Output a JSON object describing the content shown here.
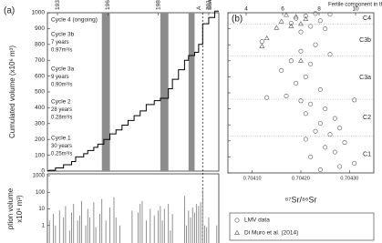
{
  "chart_data": [
    {
      "type": "line",
      "panel": "(a)",
      "ylabel": "Cumulated volume (x10⁶ m³)",
      "xlim": [
        1930,
        2015
      ],
      "xticks": [
        1935,
        1960,
        1985,
        2010
      ],
      "ylim": [
        0,
        1000
      ],
      "yticks": [
        0,
        100,
        200,
        300,
        400,
        500,
        600,
        700,
        800,
        900,
        1000
      ],
      "color": "#000000",
      "band_color": "#8c8c8c",
      "bands": [
        [
          1957,
          1961
        ],
        [
          1986,
          1990
        ],
        [
          2000,
          2003
        ]
      ],
      "dashed_x": 2007,
      "markers": [
        "A",
        "Sum"
      ],
      "x": [
        1930,
        1931,
        1934,
        1934,
        1938,
        1938,
        1942,
        1942,
        1944,
        1944,
        1948,
        1948,
        1950,
        1950,
        1953,
        1953,
        1955,
        1955,
        1958,
        1958,
        1961,
        1961,
        1964,
        1964,
        1967,
        1967,
        1970,
        1970,
        1973,
        1973,
        1976,
        1976,
        1979,
        1979,
        1983,
        1983,
        1986,
        1986,
        1990,
        1990,
        1992,
        1992,
        1995,
        1995,
        1998,
        1998,
        2000,
        2000,
        2003,
        2003,
        2005,
        2005,
        2007,
        2007,
        2010,
        2010,
        2013,
        2013,
        2015
      ],
      "values": [
        0,
        5,
        5,
        20,
        20,
        40,
        40,
        60,
        60,
        90,
        90,
        110,
        110,
        130,
        130,
        150,
        150,
        170,
        170,
        200,
        200,
        235,
        235,
        260,
        260,
        290,
        290,
        320,
        320,
        350,
        350,
        380,
        380,
        420,
        420,
        445,
        445,
        460,
        460,
        520,
        520,
        580,
        580,
        640,
        640,
        700,
        700,
        730,
        730,
        750,
        750,
        800,
        800,
        930,
        930,
        970,
        970,
        1010,
        1010
      ],
      "annotations": [
        {
          "lines": [
            "Cycle 4 (ongoing)"
          ]
        },
        {
          "lines": [
            "Cycle 3b",
            "7 years",
            "0.97m³/s"
          ]
        },
        {
          "lines": [
            "Cycle 3a",
            "9 years",
            "0.90m³/s"
          ]
        },
        {
          "lines": [
            "Cycle 2",
            "28 years",
            "0.28m³/s"
          ]
        },
        {
          "lines": [
            "Cycle 1",
            "30 years",
            "0.25m³/s"
          ]
        }
      ]
    },
    {
      "type": "bar",
      "ylabel_lines": [
        "ption volume",
        "x10⁶ m³)"
      ],
      "log_scale": true,
      "xlim": [
        1930,
        2015
      ],
      "ylim": [
        0.1,
        1000
      ],
      "yticks": [
        1,
        10,
        100,
        1000
      ],
      "color": "#777777",
      "x": [
        1931,
        1933,
        1934,
        1936,
        1938,
        1939,
        1941,
        1942,
        1943,
        1945,
        1946,
        1947,
        1949,
        1950,
        1951,
        1953,
        1954,
        1956,
        1957,
        1959,
        1961,
        1963,
        1964,
        1966,
        1972,
        1975,
        1976,
        1977,
        1979,
        1981,
        1983,
        1985,
        1986,
        1987,
        1988,
        1990,
        1991,
        1992,
        1998,
        1999,
        2000,
        2001,
        2002,
        2003,
        2004,
        2005,
        2006,
        2007,
        2008,
        2009,
        2010,
        2014
      ],
      "values": [
        2,
        5,
        1,
        8,
        3,
        15,
        0.5,
        6,
        20,
        2,
        4,
        30,
        1,
        10,
        3,
        25,
        0.8,
        5,
        40,
        2,
        12,
        50,
        3,
        1,
        8,
        6,
        20,
        30,
        2,
        10,
        4,
        8,
        15,
        2,
        10,
        20,
        0.5,
        5,
        60,
        1,
        8,
        3,
        12,
        6,
        20,
        15,
        25,
        140,
        1,
        0.8,
        3,
        1
      ]
    },
    {
      "type": "scatter",
      "panel": "(b)",
      "xlabel": "⁸⁷Sr/⁸⁶Sr",
      "x2label": "Fertile component in the source (%)",
      "xlim": [
        0.70405,
        0.70435
      ],
      "xticks": [
        {
          "value": 0.7041,
          "label": "0.70410"
        },
        {
          "value": 0.7042,
          "label": "0.70420"
        },
        {
          "value": 0.7043,
          "label": "0.70430"
        }
      ],
      "x2lim": [
        3,
        11
      ],
      "x2ticks": [
        4,
        6,
        8,
        10
      ],
      "ylim": [
        0,
        1000
      ],
      "yticks": [
        0,
        100,
        200,
        300,
        400,
        500,
        600,
        700,
        800,
        900,
        1000
      ],
      "zone_bounds": [
        230,
        460,
        730,
        930
      ],
      "zone_labels": [
        "C1",
        "C2",
        "C3a",
        "C3b",
        "C4"
      ],
      "series": [
        {
          "name": "LMV data",
          "marker": "circle",
          "color": "#555555",
          "x": [
            0.70423,
            0.70426,
            0.70421,
            0.70419,
            0.70424,
            0.70418,
            0.70422,
            0.70425,
            0.7042,
            0.70412,
            0.70423,
            0.7042,
            0.70426,
            0.70418,
            0.70422,
            0.70416,
            0.70421,
            0.70419,
            0.70424,
            0.70417,
            0.70413,
            0.7042,
            0.70431,
            0.70422,
            0.70425,
            0.70421,
            0.70427,
            0.70424,
            0.70428,
            0.70423,
            0.70426,
            0.70421,
            0.70429,
            0.70425,
            0.70427,
            0.70422,
            0.70431,
            0.70428,
            0.70424
          ],
          "values": [
            995,
            990,
            980,
            965,
            950,
            935,
            915,
            900,
            880,
            820,
            800,
            760,
            740,
            700,
            680,
            640,
            600,
            560,
            520,
            480,
            470,
            450,
            455,
            430,
            400,
            370,
            340,
            310,
            280,
            260,
            240,
            210,
            190,
            160,
            130,
            100,
            60,
            40,
            20
          ]
        },
        {
          "name": "Di Muro et al. (2014)",
          "marker": "triangle",
          "color": "#555555",
          "x": [
            0.70417,
            0.70419,
            0.70421,
            0.70416,
            0.7042,
            0.70418,
            0.70415,
            0.70413,
            0.70412,
            0.7042
          ],
          "values": [
            985,
            975,
            960,
            945,
            930,
            915,
            905,
            840,
            790,
            700
          ]
        }
      ]
    }
  ]
}
